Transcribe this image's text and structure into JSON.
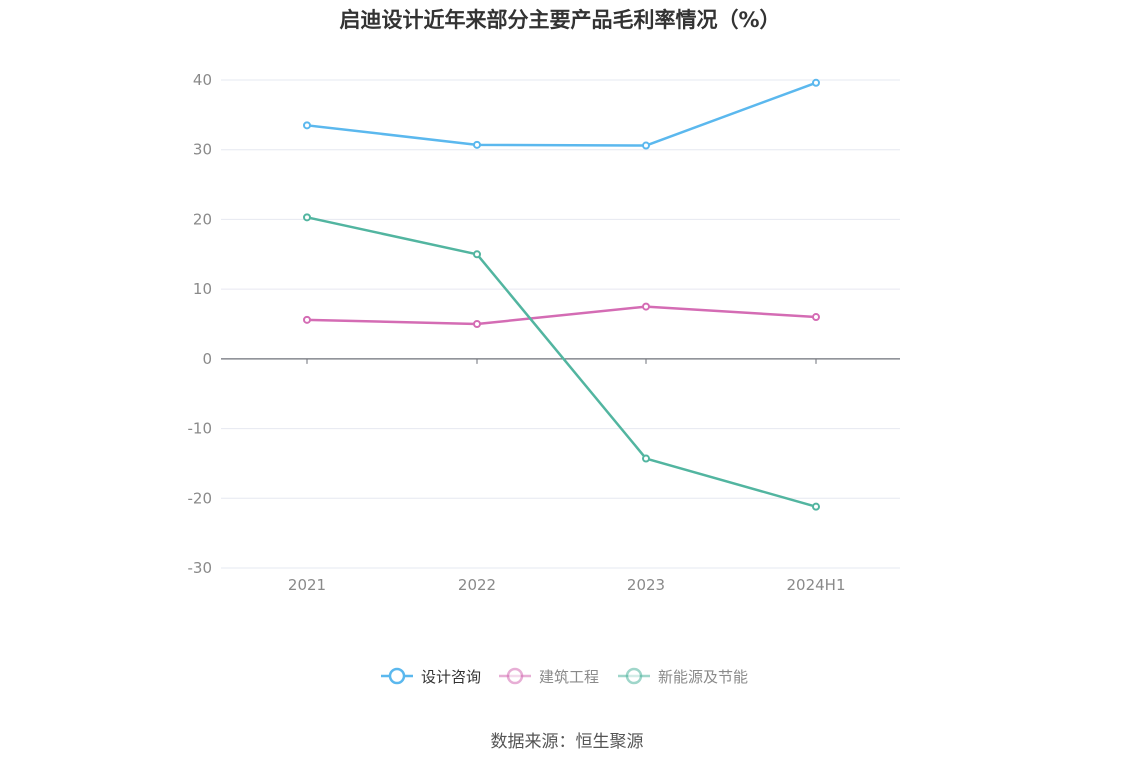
{
  "chart_data": {
    "type": "line",
    "title": "启迪设计近年来部分主要产品毛利率情况（%）",
    "categories": [
      "2021",
      "2022",
      "2023",
      "2024H1"
    ],
    "ylim": [
      -30,
      40
    ],
    "yticks": [
      40,
      30,
      20,
      10,
      0,
      -10,
      -20,
      -30
    ],
    "grid": true,
    "legend_position": "bottom",
    "series": [
      {
        "name": "设计咨询",
        "color": "#5bb8ee",
        "values": [
          33.5,
          30.7,
          30.6,
          39.6
        ]
      },
      {
        "name": "建筑工程",
        "color": "#d46cb4",
        "values": [
          5.6,
          5.0,
          7.5,
          6.0
        ]
      },
      {
        "name": "新能源及节能",
        "color": "#52b5a0",
        "values": [
          20.3,
          15.0,
          -14.3,
          -21.2
        ]
      }
    ]
  },
  "source_label": "数据来源：恒生聚源"
}
